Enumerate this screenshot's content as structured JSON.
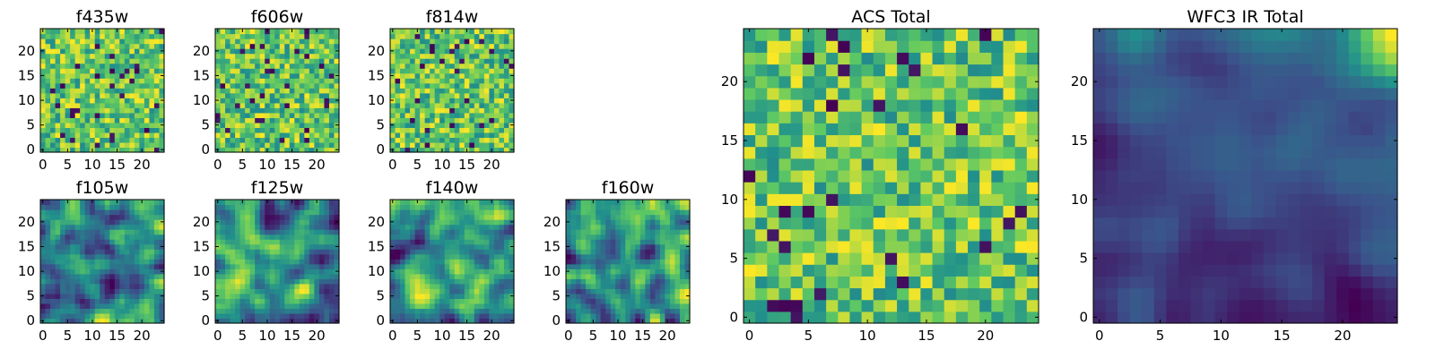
{
  "chart_data": [
    {
      "type": "heatmap",
      "title": "f435w",
      "grid_size": 25,
      "colormap": "viridis",
      "xticks": [
        "0",
        "5",
        "10",
        "15",
        "20"
      ],
      "yticks": [
        "0",
        "5",
        "10",
        "15",
        "20"
      ],
      "xlim": [
        -0.5,
        24.5
      ],
      "ylim": [
        -0.5,
        24.5
      ],
      "pattern": "noise",
      "seed": 11
    },
    {
      "type": "heatmap",
      "title": "f606w",
      "grid_size": 25,
      "colormap": "viridis",
      "xticks": [
        "0",
        "5",
        "10",
        "15",
        "20"
      ],
      "yticks": [
        "0",
        "5",
        "10",
        "15",
        "20"
      ],
      "xlim": [
        -0.5,
        24.5
      ],
      "ylim": [
        -0.5,
        24.5
      ],
      "pattern": "noise",
      "seed": 23
    },
    {
      "type": "heatmap",
      "title": "f814w",
      "grid_size": 25,
      "colormap": "viridis",
      "xticks": [
        "0",
        "5",
        "10",
        "15",
        "20"
      ],
      "yticks": [
        "0",
        "5",
        "10",
        "15",
        "20"
      ],
      "xlim": [
        -0.5,
        24.5
      ],
      "ylim": [
        -0.5,
        24.5
      ],
      "pattern": "noise",
      "seed": 37
    },
    {
      "type": "heatmap",
      "title": "f105w",
      "grid_size": 25,
      "colormap": "viridis",
      "xticks": [
        "0",
        "5",
        "10",
        "15",
        "20"
      ],
      "yticks": [
        "0",
        "5",
        "10",
        "15",
        "20"
      ],
      "xlim": [
        -0.5,
        24.5
      ],
      "ylim": [
        -0.5,
        24.5
      ],
      "pattern": "smooth",
      "seed": 41
    },
    {
      "type": "heatmap",
      "title": "f125w",
      "grid_size": 25,
      "colormap": "viridis",
      "xticks": [
        "0",
        "5",
        "10",
        "15",
        "20"
      ],
      "yticks": [
        "0",
        "5",
        "10",
        "15",
        "20"
      ],
      "xlim": [
        -0.5,
        24.5
      ],
      "ylim": [
        -0.5,
        24.5
      ],
      "pattern": "smooth",
      "seed": 53
    },
    {
      "type": "heatmap",
      "title": "f140w",
      "grid_size": 25,
      "colormap": "viridis",
      "xticks": [
        "0",
        "5",
        "10",
        "15",
        "20"
      ],
      "yticks": [
        "0",
        "5",
        "10",
        "15",
        "20"
      ],
      "xlim": [
        -0.5,
        24.5
      ],
      "ylim": [
        -0.5,
        24.5
      ],
      "pattern": "smooth",
      "seed": 67
    },
    {
      "type": "heatmap",
      "title": "f160w",
      "grid_size": 25,
      "colormap": "viridis",
      "xticks": [
        "0",
        "5",
        "10",
        "15",
        "20"
      ],
      "yticks": [
        "0",
        "5",
        "10",
        "15",
        "20"
      ],
      "xlim": [
        -0.5,
        24.5
      ],
      "ylim": [
        -0.5,
        24.5
      ],
      "pattern": "smooth",
      "seed": 79
    },
    {
      "type": "heatmap",
      "title": "ACS Total",
      "grid_size": 25,
      "colormap": "viridis",
      "xticks": [
        "0",
        "5",
        "10",
        "15",
        "20"
      ],
      "yticks": [
        "0",
        "5",
        "10",
        "15",
        "20"
      ],
      "xlim": [
        -0.5,
        24.5
      ],
      "ylim": [
        -0.5,
        24.5
      ],
      "pattern": "noise",
      "seed": 97
    },
    {
      "type": "heatmap",
      "title": "WFC3 IR Total",
      "grid_size": 25,
      "colormap": "viridis",
      "xticks": [
        "0",
        "5",
        "10",
        "15",
        "20"
      ],
      "yticks": [
        "0",
        "5",
        "10",
        "15",
        "20"
      ],
      "xlim": [
        -0.5,
        24.5
      ],
      "ylim": [
        -0.5,
        24.5
      ],
      "pattern": "gradient",
      "seed": 113
    }
  ],
  "colors": {
    "viridis": [
      "#440154",
      "#3b528b",
      "#21918c",
      "#5ec962",
      "#fde725"
    ]
  }
}
